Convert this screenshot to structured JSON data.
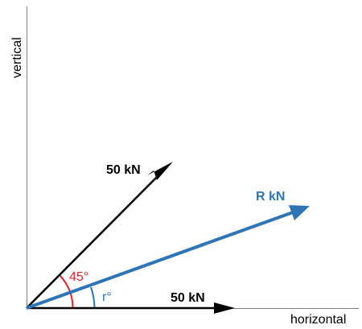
{
  "axes": {
    "horizontal_label": "horizontal",
    "vertical_label": "vertical"
  },
  "vectors": {
    "diagonal": {
      "label": "50 kN",
      "angle_deg": 45,
      "color": "#000000"
    },
    "horizontal": {
      "label": "50 kN",
      "angle_deg": 0,
      "color": "#000000"
    },
    "resultant": {
      "label": "R kN",
      "color": "#2e75b6"
    }
  },
  "angles": {
    "diagonal_angle_label": "45°",
    "diagonal_angle_color": "#e3262b",
    "resultant_angle_label": "r°",
    "resultant_angle_color": "#2e75b6"
  }
}
